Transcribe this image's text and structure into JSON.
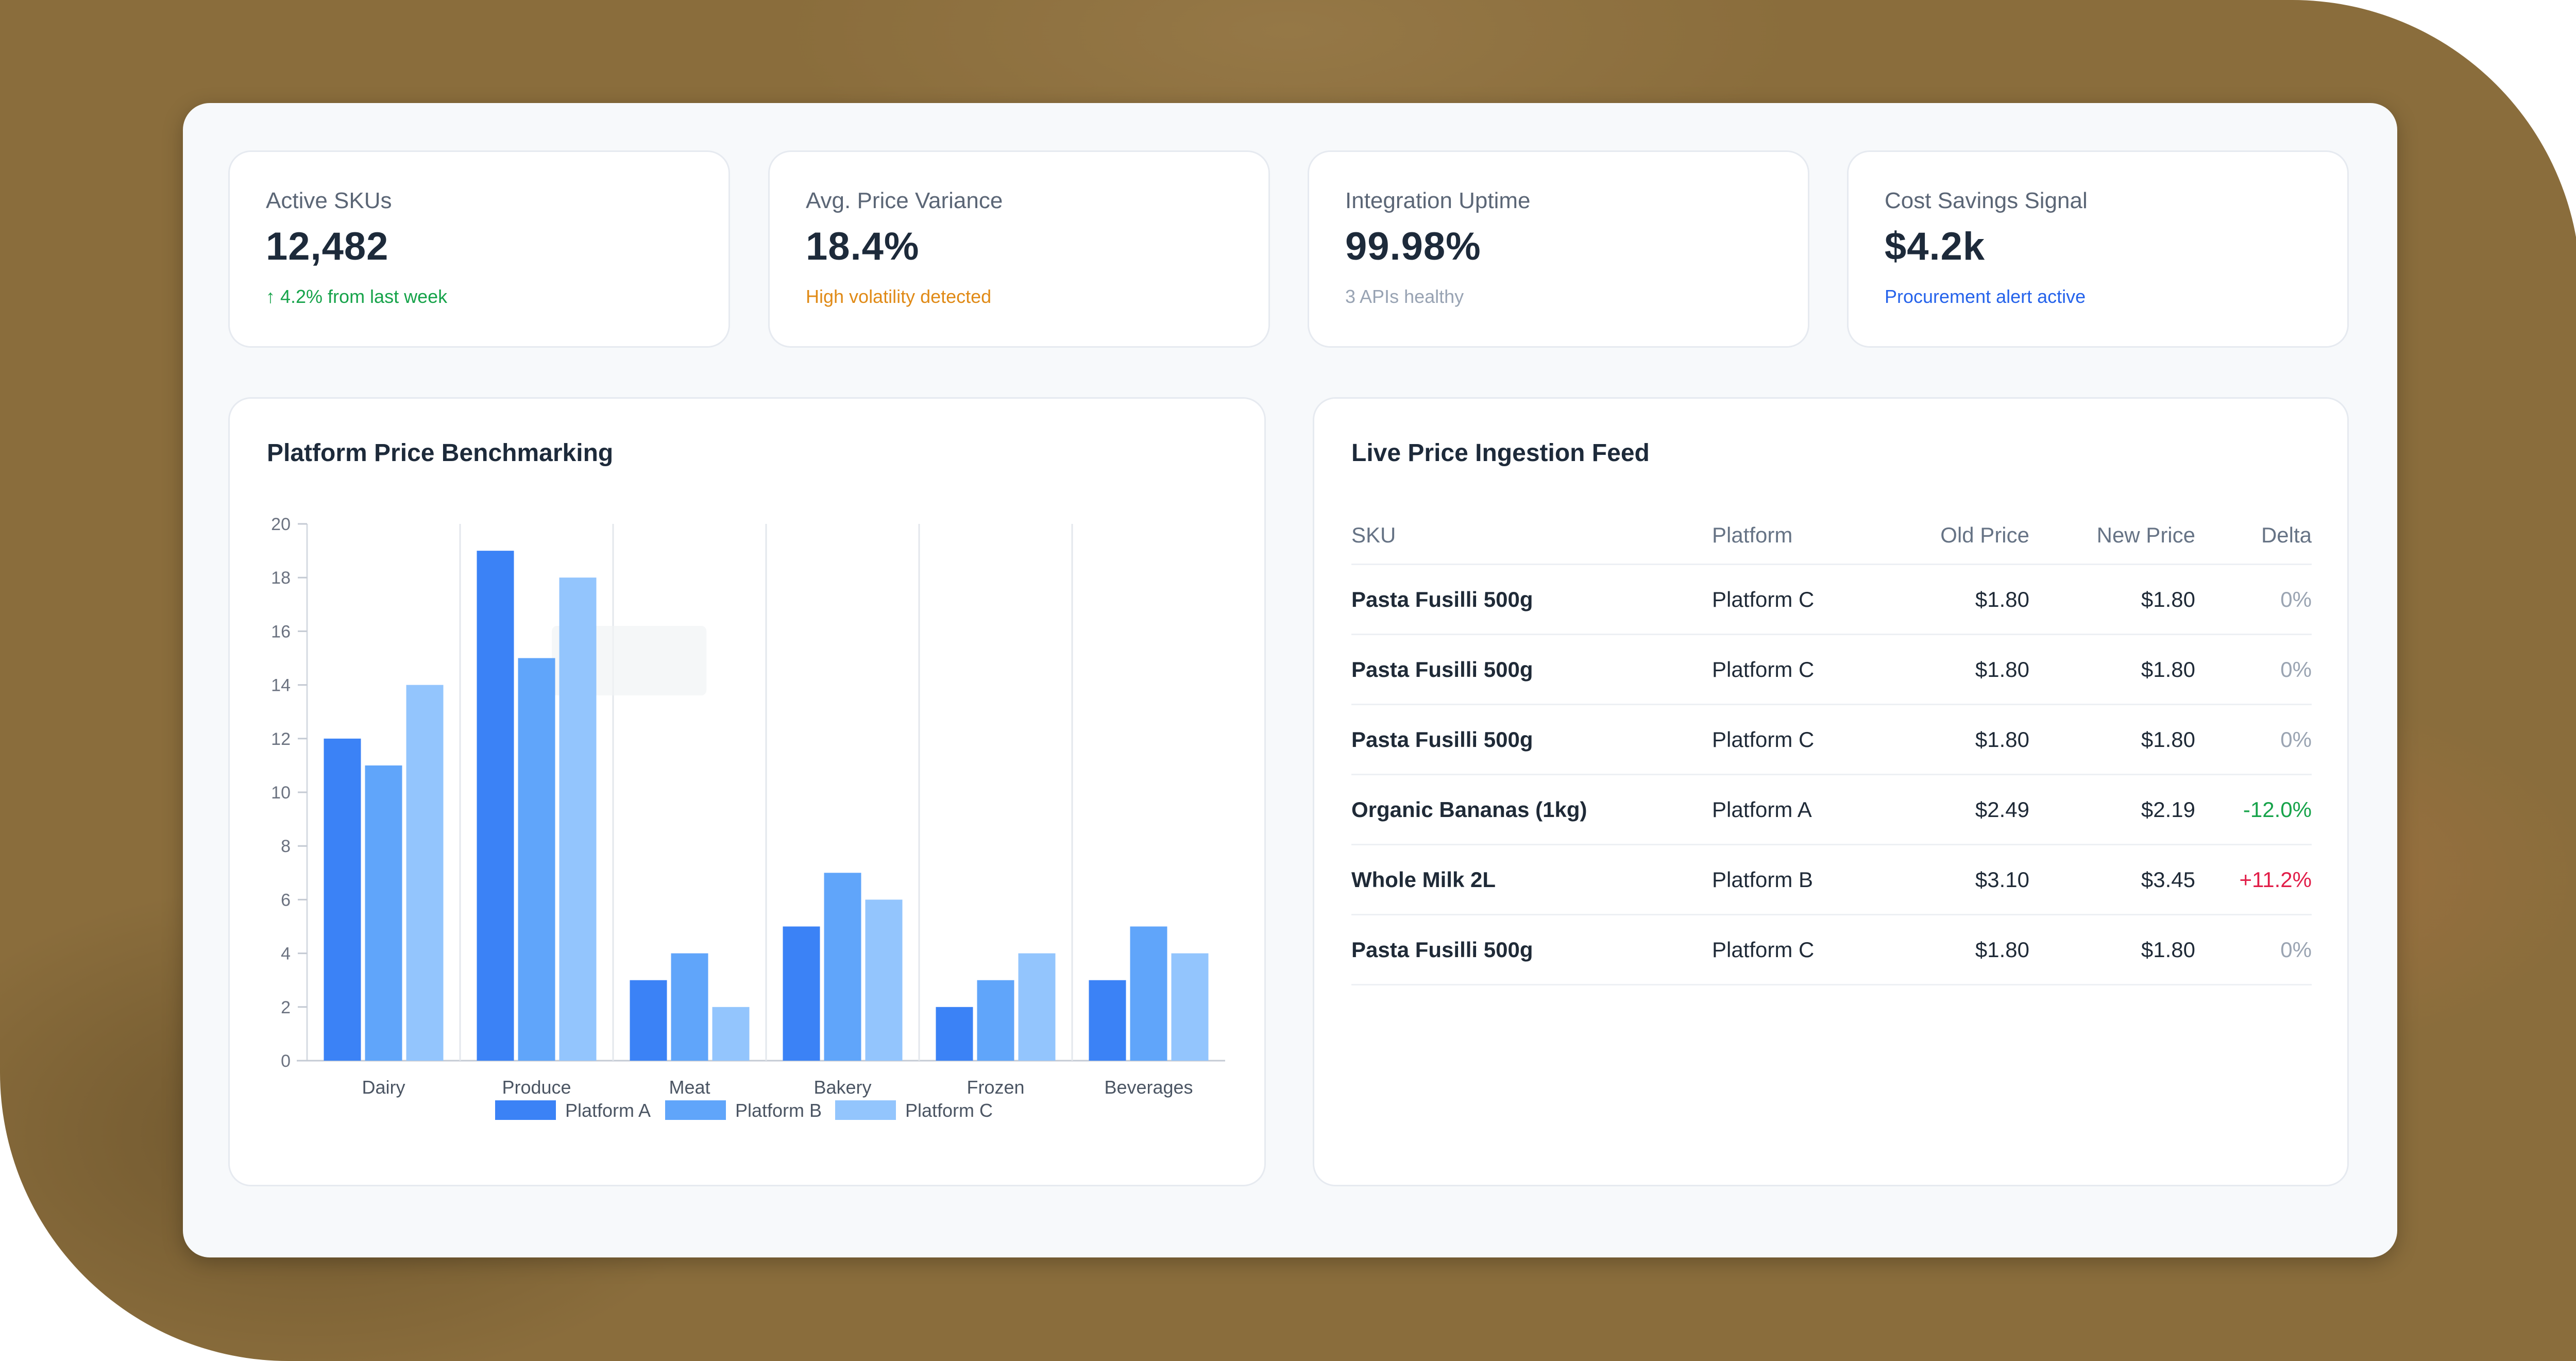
{
  "kpis": [
    {
      "label": "Active SKUs",
      "value": "12,482",
      "sub": "↑ 4.2% from last week",
      "sub_color": "#16a34a"
    },
    {
      "label": "Avg. Price Variance",
      "value": "18.4%",
      "sub": "High volatility detected",
      "sub_color": "#e08a16"
    },
    {
      "label": "Integration Uptime",
      "value": "99.98%",
      "sub": "3 APIs healthy",
      "sub_color": "#98a3b3"
    },
    {
      "label": "Cost Savings Signal",
      "value": "$4.2k",
      "sub": "Procurement alert active",
      "sub_color": "#2563eb"
    }
  ],
  "chart_panel": {
    "title": "Platform Price Benchmarking"
  },
  "feed_panel": {
    "title": "Live Price Ingestion Feed",
    "columns": [
      "SKU",
      "Platform",
      "Old Price",
      "New Price",
      "Delta"
    ],
    "rows": [
      {
        "sku": "Pasta Fusilli 500g",
        "platform": "Platform C",
        "old": "$1.80",
        "new": "$1.80",
        "delta": "0%",
        "delta_kind": "zero"
      },
      {
        "sku": "Pasta Fusilli 500g",
        "platform": "Platform C",
        "old": "$1.80",
        "new": "$1.80",
        "delta": "0%",
        "delta_kind": "zero"
      },
      {
        "sku": "Pasta Fusilli 500g",
        "platform": "Platform C",
        "old": "$1.80",
        "new": "$1.80",
        "delta": "0%",
        "delta_kind": "zero"
      },
      {
        "sku": "Organic Bananas (1kg)",
        "platform": "Platform A",
        "old": "$2.49",
        "new": "$2.19",
        "delta": "-12.0%",
        "delta_kind": "neg"
      },
      {
        "sku": "Whole Milk 2L",
        "platform": "Platform B",
        "old": "$3.10",
        "new": "$3.45",
        "delta": "+11.2%",
        "delta_kind": "pos"
      },
      {
        "sku": "Pasta Fusilli 500g",
        "platform": "Platform C",
        "old": "$1.80",
        "new": "$1.80",
        "delta": "0%",
        "delta_kind": "zero"
      }
    ]
  },
  "chart_data": {
    "type": "bar",
    "title": "Platform Price Benchmarking",
    "categories": [
      "Dairy",
      "Produce",
      "Meat",
      "Bakery",
      "Frozen",
      "Beverages"
    ],
    "series": [
      {
        "name": "Platform A",
        "values": [
          12,
          19,
          3,
          5,
          2,
          3
        ],
        "color": "#3b82f6"
      },
      {
        "name": "Platform B",
        "values": [
          11,
          15,
          4,
          7,
          3,
          5
        ],
        "color": "#60a5fa"
      },
      {
        "name": "Platform C",
        "values": [
          14,
          18,
          2,
          6,
          4,
          4
        ],
        "color": "#93c5fd"
      }
    ],
    "ylim": [
      0,
      20
    ],
    "yticks": [
      0,
      2,
      4,
      6,
      8,
      10,
      12,
      14,
      16,
      18,
      20
    ],
    "grid": "vertical category separators",
    "legend": "bottom-center"
  }
}
